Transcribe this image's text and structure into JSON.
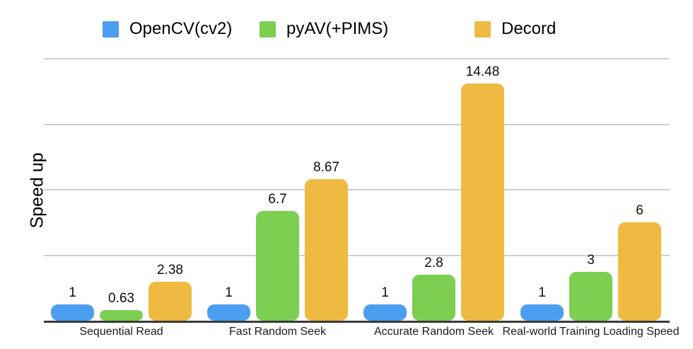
{
  "chart_data": {
    "type": "bar",
    "title": "",
    "xlabel": "",
    "ylabel": "Speed up",
    "ylim": [
      0,
      16
    ],
    "gridline_values": [
      4,
      8,
      12,
      16
    ],
    "grid": true,
    "legend_position": "top",
    "value_labels_shown": true,
    "categories": [
      "Sequential Read",
      "Fast Random Seek",
      "Accurate Random Seek",
      "Real-world Training Loading Speed"
    ],
    "series": [
      {
        "name": "OpenCV(cv2)",
        "color": "#4C9FF0",
        "values": [
          1,
          1,
          1,
          1
        ]
      },
      {
        "name": "pyAV(+PIMS)",
        "color": "#7CCF51",
        "values": [
          0.63,
          6.7,
          2.8,
          3
        ]
      },
      {
        "name": "Decord",
        "color": "#EFBA42",
        "values": [
          2.38,
          8.67,
          14.48,
          6
        ]
      }
    ]
  }
}
